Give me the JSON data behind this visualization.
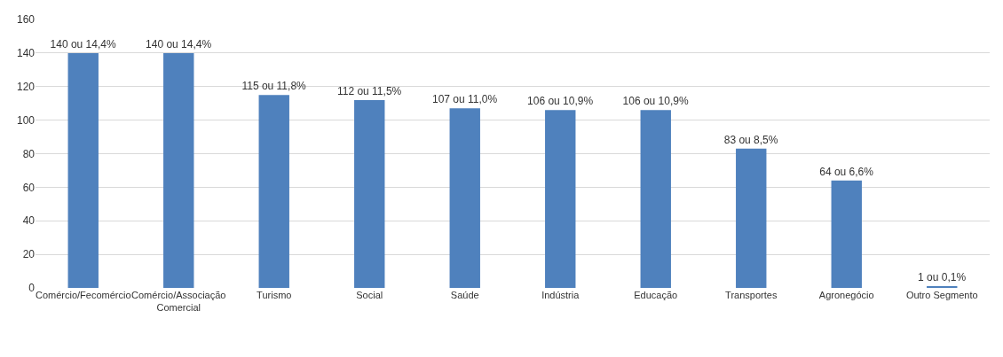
{
  "chart_data": {
    "type": "bar",
    "categories": [
      "Comércio/Fecomércio",
      "Comércio/Associação Comercial",
      "Turismo",
      "Social",
      "Saúde",
      "Indústria",
      "Educação",
      "Transportes",
      "Agronegócio",
      "Outro Segmento"
    ],
    "values": [
      140,
      140,
      115,
      112,
      107,
      106,
      106,
      83,
      64,
      1
    ],
    "value_labels": [
      "140 ou 14,4%",
      "140 ou 14,4%",
      "115 ou 11,8%",
      "112 ou 11,5%",
      "107 ou 11,0%",
      "106 ou 10,9%",
      "106 ou 10,9%",
      "83 ou 8,5%",
      "64 ou 6,6%",
      "1 ou 0,1%"
    ],
    "color": "#4f81bd",
    "ylim": [
      0,
      160
    ],
    "yticks": [
      0,
      20,
      40,
      60,
      80,
      100,
      120,
      140,
      160
    ],
    "grid": "y",
    "legend": false
  }
}
